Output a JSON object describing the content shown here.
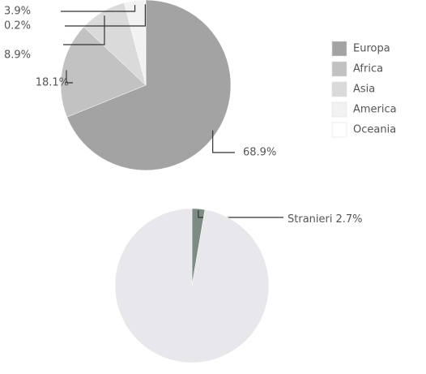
{
  "chart_data": [
    {
      "type": "pie",
      "categories": [
        "Europa",
        "Africa",
        "Asia",
        "America",
        "Oceania"
      ],
      "values": [
        68.9,
        18.1,
        8.9,
        3.9,
        0.2
      ],
      "value_labels": [
        "68.9%",
        "18.1%",
        "8.9%",
        "3.9%",
        "0.2%"
      ],
      "colors": [
        "#a3a3a3",
        "#c2c2c2",
        "#dadada",
        "#f2f2f2",
        "#ffffff"
      ],
      "legend": "right"
    },
    {
      "type": "pie",
      "categories": [
        "Stranieri",
        null
      ],
      "values": [
        2.7,
        97.3
      ],
      "value_labels": [
        "2.7%",
        null
      ],
      "colors": [
        "#7d8c82",
        "#e8e8ec"
      ]
    }
  ]
}
